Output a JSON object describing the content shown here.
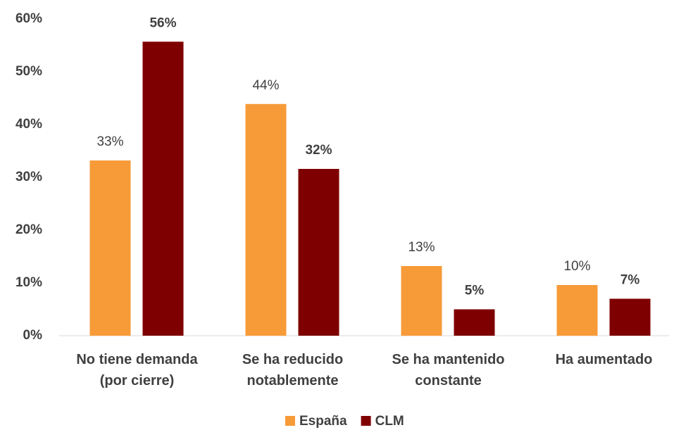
{
  "chart_data": {
    "type": "bar",
    "categories": [
      "No tiene demanda (por cierre)",
      "Se ha reducido notablemente",
      "Se ha mantenido constante",
      "Ha aumentado"
    ],
    "series": [
      {
        "name": "España",
        "color": "#f79b38",
        "values": [
          33.2,
          43.9,
          13.2,
          9.6
        ],
        "value_labels": [
          "33%",
          "44%",
          "13%",
          "10%"
        ]
      },
      {
        "name": "CLM",
        "color": "#7f0000",
        "values": [
          55.7,
          31.6,
          5.0,
          7.0
        ],
        "value_labels": [
          "56%",
          "32%",
          "5%",
          "7%"
        ]
      }
    ],
    "ylim": [
      0,
      60
    ],
    "yticks": [
      {
        "value": 0,
        "label": "0%"
      },
      {
        "value": 10,
        "label": "10%"
      },
      {
        "value": 20,
        "label": "20%"
      },
      {
        "value": 30,
        "label": "30%"
      },
      {
        "value": 40,
        "label": "40%"
      },
      {
        "value": 50,
        "label": "50%"
      },
      {
        "value": 60,
        "label": "60%"
      }
    ],
    "grid": false,
    "legend": "bottom"
  }
}
